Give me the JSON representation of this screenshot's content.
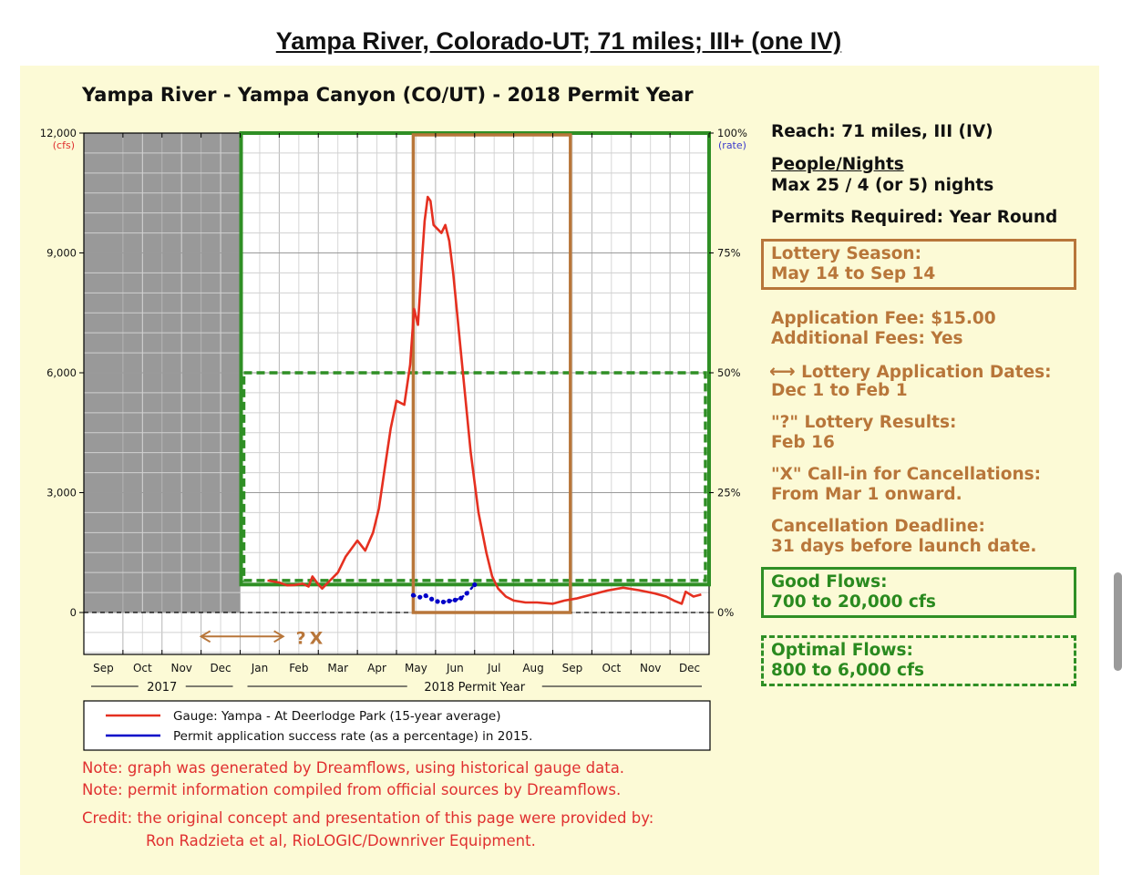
{
  "page_title": "Yampa River, Colorado-UT; 71 miles; III+ (one IV)",
  "chart_data": {
    "type": "line",
    "title": "Yampa River - Yampa Canyon (CO/UT) - 2018 Permit Year",
    "y_left_unit": "(cfs)",
    "y_right_unit": "(rate)",
    "ylim": [
      0,
      12000
    ],
    "ylim_visible_min": -1000,
    "y_ticks": [
      0,
      3000,
      6000,
      9000,
      12000
    ],
    "y_tick_labels": [
      "0",
      "3,000",
      "6,000",
      "9,000",
      "12,000"
    ],
    "y_right_ticks": [
      0,
      25,
      50,
      75,
      100
    ],
    "y_right_tick_labels": [
      "0%",
      "25%",
      "50%",
      "75%",
      "100%"
    ],
    "months": [
      "Sep",
      "Oct",
      "Nov",
      "Dec",
      "Jan",
      "Feb",
      "Mar",
      "Apr",
      "May",
      "Jun",
      "Jul",
      "Aug",
      "Sep",
      "Oct",
      "Nov",
      "Dec"
    ],
    "year_labels": [
      "2017",
      "2018 Permit Year"
    ],
    "grid": true,
    "legend_position": "bottom",
    "unavailable_period": {
      "from_month_index": 0,
      "to_month_index": 4,
      "color": "#999999"
    },
    "good_flows_range_cfs": [
      700,
      20000
    ],
    "optimal_flows_range_cfs": [
      800,
      6000
    ],
    "lottery_season_months": [
      8.43,
      12.45
    ],
    "series": [
      {
        "name": "Gauge: Yampa - At Deerlodge Park (15-year average)",
        "color": "#e53020",
        "x": [
          4.7,
          5.0,
          5.2,
          5.4,
          5.6,
          5.75,
          5.85,
          6.0,
          6.1,
          6.3,
          6.5,
          6.7,
          6.85,
          7.0,
          7.2,
          7.4,
          7.55,
          7.7,
          7.85,
          8.0,
          8.2,
          8.35,
          8.45,
          8.55,
          8.65,
          8.72,
          8.8,
          8.87,
          8.95,
          9.05,
          9.15,
          9.25,
          9.35,
          9.45,
          9.55,
          9.7,
          9.9,
          10.1,
          10.3,
          10.45,
          10.6,
          10.8,
          11.0,
          11.3,
          11.6,
          12.0,
          12.3,
          12.6,
          13.0,
          13.4,
          13.8,
          14.2,
          14.6,
          14.9,
          15.1,
          15.3,
          15.4,
          15.6,
          15.8
        ],
        "y": [
          800,
          750,
          680,
          690,
          720,
          650,
          900,
          700,
          600,
          800,
          1000,
          1400,
          1600,
          1800,
          1550,
          2000,
          2600,
          3600,
          4600,
          5300,
          5200,
          6200,
          7600,
          7200,
          8800,
          9800,
          10400,
          10300,
          9700,
          9600,
          9500,
          9700,
          9300,
          8500,
          7500,
          6000,
          4000,
          2500,
          1500,
          900,
          600,
          400,
          300,
          250,
          250,
          220,
          300,
          350,
          450,
          550,
          620,
          560,
          480,
          400,
          300,
          220,
          520,
          400,
          450
        ]
      },
      {
        "name": "Permit application success rate (as a percentage) in 2015.",
        "color": "#0000c8",
        "x": [
          8.43,
          8.6,
          8.75,
          8.9,
          9.05,
          9.2,
          9.35,
          9.5,
          9.65,
          9.8,
          10.0
        ],
        "y": [
          3.6,
          3.2,
          3.5,
          2.8,
          2.3,
          2.2,
          2.4,
          2.6,
          3.0,
          4.0,
          5.8
        ],
        "y_unit": "%"
      }
    ],
    "annotations": {
      "application_arrow_months": [
        3.0,
        5.1
      ],
      "results_marker": "?",
      "callin_marker": "X"
    }
  },
  "sidebar": {
    "reach": "Reach: 71 miles, III (IV)",
    "people_nights_heading": "People/Nights",
    "people_nights_value": "Max 25 / 4 (or 5) nights",
    "permits_required": "Permits Required: Year Round",
    "lottery_season_label": "Lottery Season:",
    "lottery_season_value": "May 14 to Sep 14",
    "application_fee": "Application Fee: $15.00",
    "additional_fees": "Additional Fees: Yes",
    "application_dates_arrow": "⟷",
    "application_dates_label": "Lottery Application Dates:",
    "application_dates_value": "Dec 1 to Feb 1",
    "results_label": "\"?\" Lottery Results:",
    "results_value": "Feb 16",
    "callin_label": "\"X\" Call-in for Cancellations:",
    "callin_value": "From Mar 1 onward.",
    "cancel_deadline_label": "Cancellation Deadline:",
    "cancel_deadline_value": "31 days before launch date.",
    "good_flows_label": "Good Flows:",
    "good_flows_value": "700 to 20,000 cfs",
    "optimal_flows_label": "Optimal Flows:",
    "optimal_flows_value": "800 to 6,000 cfs"
  },
  "notes": {
    "note1": "Note: graph was generated by Dreamflows, using historical gauge data.",
    "note2": "Note: permit information compiled from official sources by Dreamflows.",
    "credit1": "Credit: the original concept and presentation of this page were provided by:",
    "credit2": "Ron Radzieta et al, RioLOGIC/Downriver Equipment."
  },
  "colors": {
    "gauge_line": "#e53020",
    "success_rate": "#0000c8",
    "lottery_box": "#b8763a",
    "flows_box": "#2f8f25",
    "unavailable": "#999999",
    "panel_bg": "#fcfad6"
  }
}
